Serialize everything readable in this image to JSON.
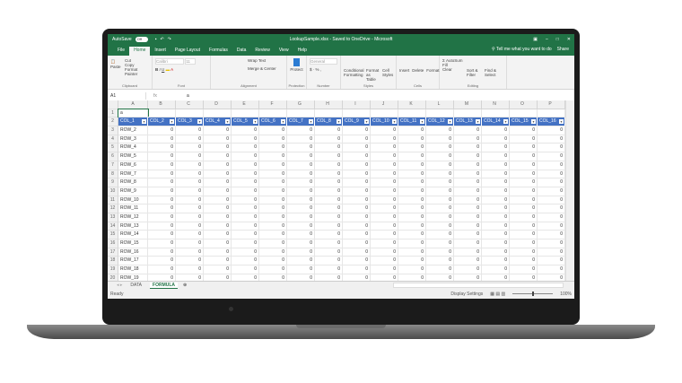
{
  "titlebar": {
    "autosave": "AutoSave",
    "toggle": "Off",
    "title": "LookupSample.xlsx - Saved to OneDrive - Microsoft",
    "controls": [
      "▣",
      "–",
      "□",
      "✕"
    ]
  },
  "tabs": [
    "File",
    "Home",
    "Insert",
    "Page Layout",
    "Formulas",
    "Data",
    "Review",
    "View",
    "Help"
  ],
  "active_tab": "Home",
  "tell_me": "Tell me what you want to do",
  "share": "Share",
  "ribbon": {
    "clipboard": {
      "paste": "Paste",
      "cut": "Cut",
      "copy": "Copy",
      "format_painter": "Format Painter",
      "label": "Clipboard"
    },
    "font": {
      "name": "Calibri",
      "size": "11",
      "label": "Font"
    },
    "alignment": {
      "wrap": "Wrap Text",
      "merge": "Merge & Center",
      "label": "Alignment"
    },
    "protection": {
      "protect": "Protect",
      "label": "Protection"
    },
    "number": {
      "format": "General",
      "label": "Number"
    },
    "styles": {
      "conditional": "Conditional Formatting",
      "format_table": "Format as Table",
      "cell_styles": "Cell Styles",
      "label": "Styles"
    },
    "cells": {
      "insert": "Insert",
      "delete": "Delete",
      "format": "Format",
      "label": "Cells"
    },
    "editing": {
      "autosum": "AutoSum",
      "fill": "Fill",
      "clear": "Clear",
      "sort": "Sort & Filter",
      "find": "Find & Select",
      "label": "Editing"
    }
  },
  "formula_bar": {
    "name_box": "A1",
    "fx": "fx",
    "value": "a"
  },
  "columns": [
    "A",
    "B",
    "C",
    "D",
    "E",
    "F",
    "G",
    "H",
    "I",
    "J",
    "K",
    "L",
    "M",
    "N",
    "O",
    "P"
  ],
  "cell_a1": "a",
  "table_headers": [
    "COL_1",
    "COL_2",
    "COL_3",
    "COL_4",
    "COL_5",
    "COL_6",
    "COL_7",
    "COL_8",
    "COL_9",
    "COL_10",
    "COL_11",
    "COL_12",
    "COL_13",
    "COL_14",
    "COL_15",
    "COL_16"
  ],
  "row_labels": [
    "ROW_2",
    "ROW_3",
    "ROW_4",
    "ROW_5",
    "ROW_6",
    "ROW_7",
    "ROW_8",
    "ROW_9",
    "ROW_10",
    "ROW_11",
    "ROW_12",
    "ROW_13",
    "ROW_14",
    "ROW_15",
    "ROW_16",
    "ROW_17",
    "ROW_18",
    "ROW_19"
  ],
  "cell_value": "0",
  "sheets": [
    "DATA",
    "FORMULA"
  ],
  "active_sheet": "FORMULA",
  "status": {
    "ready": "Ready",
    "display_settings": "Display Settings",
    "zoom": "100%"
  },
  "colors": {
    "excel_green": "#217346",
    "table_header": "#4472c4"
  }
}
